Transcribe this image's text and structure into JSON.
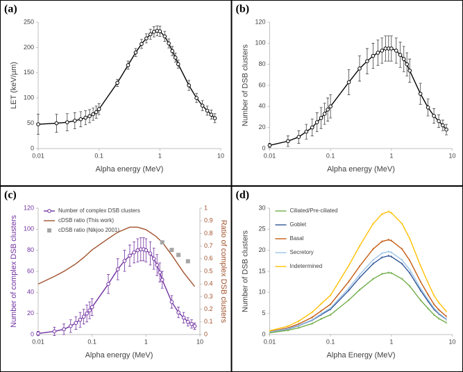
{
  "chart_data": [
    {
      "type": "line",
      "panel_label": "(a)",
      "xlabel": "Alpha energy (MeV)",
      "ylabel": "LET (keV/µm)",
      "xscale": "log",
      "xlim": [
        0.01,
        10
      ],
      "xticks": [
        0.01,
        0.1,
        1,
        10
      ],
      "ylim": [
        0,
        250
      ],
      "yticks": [
        0,
        50,
        100,
        150,
        200,
        250
      ],
      "color": "#000000",
      "marker": "circle",
      "x": [
        0.01,
        0.02,
        0.03,
        0.04,
        0.05,
        0.06,
        0.07,
        0.08,
        0.09,
        0.1,
        0.2,
        0.3,
        0.4,
        0.5,
        0.6,
        0.7,
        0.8,
        0.9,
        1,
        1.2,
        1.4,
        1.6,
        1.8,
        2,
        3,
        4,
        5,
        6,
        7,
        8
      ],
      "values": [
        48,
        50,
        52,
        55,
        58,
        61,
        64,
        68,
        72,
        78,
        130,
        165,
        190,
        207,
        218,
        226,
        231,
        233,
        232,
        222,
        208,
        193,
        180,
        167,
        125,
        100,
        85,
        75,
        67,
        60
      ],
      "errors": [
        20,
        18,
        17,
        16,
        15,
        14,
        13,
        12,
        12,
        11,
        7,
        8,
        8,
        9,
        9,
        10,
        10,
        10,
        10,
        10,
        9,
        9,
        9,
        8,
        10,
        9,
        10,
        9,
        9,
        9
      ]
    },
    {
      "type": "line",
      "panel_label": "(b)",
      "xlabel": "Alpha energy (MeV)",
      "ylabel": "Number of DSB clusters",
      "xscale": "log",
      "xlim": [
        0.01,
        10
      ],
      "xticks": [
        0.01,
        0.1,
        1,
        10
      ],
      "ylim": [
        0,
        120
      ],
      "yticks": [
        0,
        20,
        40,
        60,
        80,
        100,
        120
      ],
      "color": "#000000",
      "marker": "circle",
      "x": [
        0.01,
        0.02,
        0.03,
        0.04,
        0.05,
        0.06,
        0.07,
        0.08,
        0.09,
        0.1,
        0.2,
        0.3,
        0.4,
        0.5,
        0.6,
        0.7,
        0.8,
        0.9,
        1,
        1.2,
        1.4,
        1.6,
        1.8,
        2,
        3,
        4,
        5,
        6,
        7,
        8
      ],
      "values": [
        3,
        7,
        11,
        16,
        20,
        25,
        29,
        33,
        37,
        40,
        63,
        76,
        83,
        88,
        91,
        93,
        95,
        95,
        95,
        93,
        89,
        85,
        80,
        74,
        52,
        39,
        31,
        26,
        22,
        18
      ],
      "errors": [
        2,
        5,
        6,
        7,
        8,
        9,
        10,
        10,
        11,
        11,
        12,
        12,
        12,
        12,
        12,
        12,
        12,
        12,
        12,
        12,
        12,
        12,
        11,
        11,
        10,
        8,
        7,
        6,
        5,
        5
      ]
    },
    {
      "type": "line",
      "panel_label": "(c)",
      "xlabel": "Alpha energy (MeV)",
      "ylabel": "Number of complex DSB clusters",
      "y2label": "Ratio of complex DSB clusters",
      "xscale": "log",
      "xlim": [
        0.01,
        10
      ],
      "xticks": [
        0.01,
        0.1,
        1,
        10
      ],
      "ylim": [
        0,
        120
      ],
      "yticks": [
        0,
        20,
        40,
        60,
        80,
        100,
        120
      ],
      "y2lim": [
        0,
        1
      ],
      "y2ticks": [
        0,
        0.1,
        0.2,
        0.3,
        0.4,
        0.5,
        0.6,
        0.7,
        0.8,
        0.9,
        1
      ],
      "legend": "upper left",
      "series": [
        {
          "name": "Number of complex DSB clusters",
          "color": "#7030a0",
          "marker": "circle",
          "line": true,
          "x": [
            0.01,
            0.02,
            0.03,
            0.04,
            0.05,
            0.06,
            0.07,
            0.08,
            0.09,
            0.1,
            0.2,
            0.3,
            0.4,
            0.5,
            0.6,
            0.7,
            0.8,
            0.9,
            1,
            1.2,
            1.4,
            1.6,
            1.8,
            2,
            3,
            4,
            5,
            6,
            7,
            8
          ],
          "values": [
            1,
            3,
            5,
            8,
            11,
            14,
            17,
            20,
            23,
            26,
            48,
            62,
            70,
            75,
            78,
            80,
            81,
            81,
            80,
            77,
            72,
            66,
            59,
            52,
            31,
            21,
            16,
            12,
            10,
            8
          ],
          "errors": [
            2,
            4,
            5,
            6,
            6,
            7,
            7,
            8,
            8,
            8,
            9,
            10,
            10,
            10,
            10,
            11,
            11,
            11,
            11,
            11,
            10,
            10,
            9,
            8,
            6,
            5,
            5,
            4,
            4,
            3
          ]
        },
        {
          "name": "cDSB ratio (This work)",
          "color": "#a0522d",
          "marker": "none",
          "line": true,
          "axis": "y2",
          "x": [
            0.01,
            0.02,
            0.03,
            0.05,
            0.07,
            0.1,
            0.2,
            0.3,
            0.5,
            0.7,
            1,
            1.5,
            2,
            3,
            5,
            8
          ],
          "values": [
            0.4,
            0.46,
            0.5,
            0.56,
            0.61,
            0.67,
            0.76,
            0.81,
            0.85,
            0.85,
            0.83,
            0.78,
            0.73,
            0.63,
            0.49,
            0.38
          ]
        },
        {
          "name": "cDSB ratio (Nikjoo 2001)",
          "color": "#a6a6a6",
          "marker": "square",
          "line": false,
          "axis": "y2",
          "x": [
            2,
            3,
            4,
            6
          ],
          "values": [
            0.73,
            0.67,
            0.63,
            0.58
          ]
        }
      ]
    },
    {
      "type": "line",
      "panel_label": "(d)",
      "xlabel": "Alpha Energy (MeV)",
      "ylabel": "Number of DSB clusters",
      "xscale": "log",
      "xlim": [
        0.01,
        10
      ],
      "xticks": [
        0.01,
        0.1,
        1,
        10
      ],
      "ylim": [
        0,
        30
      ],
      "yticks": [
        0,
        5,
        10,
        15,
        20,
        25,
        30
      ],
      "legend": "upper left",
      "x": [
        0.01,
        0.02,
        0.03,
        0.05,
        0.07,
        0.1,
        0.2,
        0.3,
        0.5,
        0.7,
        0.9,
        1,
        1.5,
        2,
        3,
        4,
        5,
        6,
        8
      ],
      "series": [
        {
          "name": "Ciliated/Pre-ciliated",
          "color": "#70ad47",
          "marker": "dash",
          "line": true,
          "values": [
            0.4,
            1.0,
            1.6,
            2.6,
            3.7,
            4.7,
            8.2,
            10.6,
            13.2,
            14.4,
            14.7,
            14.6,
            13.2,
            11.5,
            8.2,
            6.2,
            4.7,
            3.8,
            2.8
          ]
        },
        {
          "name": "Goblet",
          "color": "#2f5597",
          "marker": "dash",
          "line": true,
          "values": [
            0.6,
            1.3,
            2.1,
            3.4,
            4.7,
            6.0,
            10.5,
            13.5,
            16.8,
            18.3,
            18.7,
            18.5,
            16.8,
            14.6,
            10.5,
            7.9,
            6.0,
            4.9,
            3.6
          ]
        },
        {
          "name": "Basal",
          "color": "#c55a11",
          "marker": "dash",
          "line": true,
          "values": [
            0.7,
            1.6,
            2.5,
            4.1,
            5.6,
            7.2,
            12.6,
            16.2,
            20.3,
            22.1,
            22.5,
            22.3,
            20.3,
            17.6,
            12.6,
            9.5,
            7.2,
            5.9,
            4.3
          ]
        },
        {
          "name": "Secretory",
          "color": "#9dc3e6",
          "marker": "dash",
          "line": true,
          "values": [
            0.6,
            1.4,
            2.2,
            3.5,
            4.9,
            6.3,
            11.0,
            14.2,
            17.7,
            19.3,
            19.7,
            19.5,
            17.7,
            15.4,
            11.0,
            8.3,
            6.3,
            5.1,
            3.7
          ]
        },
        {
          "name": "Indetermined",
          "color": "#ffc000",
          "marker": "dash",
          "line": true,
          "values": [
            0.9,
            2.0,
            3.2,
            5.3,
            7.3,
            9.3,
            16.4,
            21.0,
            26.3,
            28.6,
            29.2,
            28.9,
            26.3,
            22.8,
            16.4,
            12.3,
            9.3,
            7.6,
            5.5
          ]
        }
      ]
    }
  ]
}
